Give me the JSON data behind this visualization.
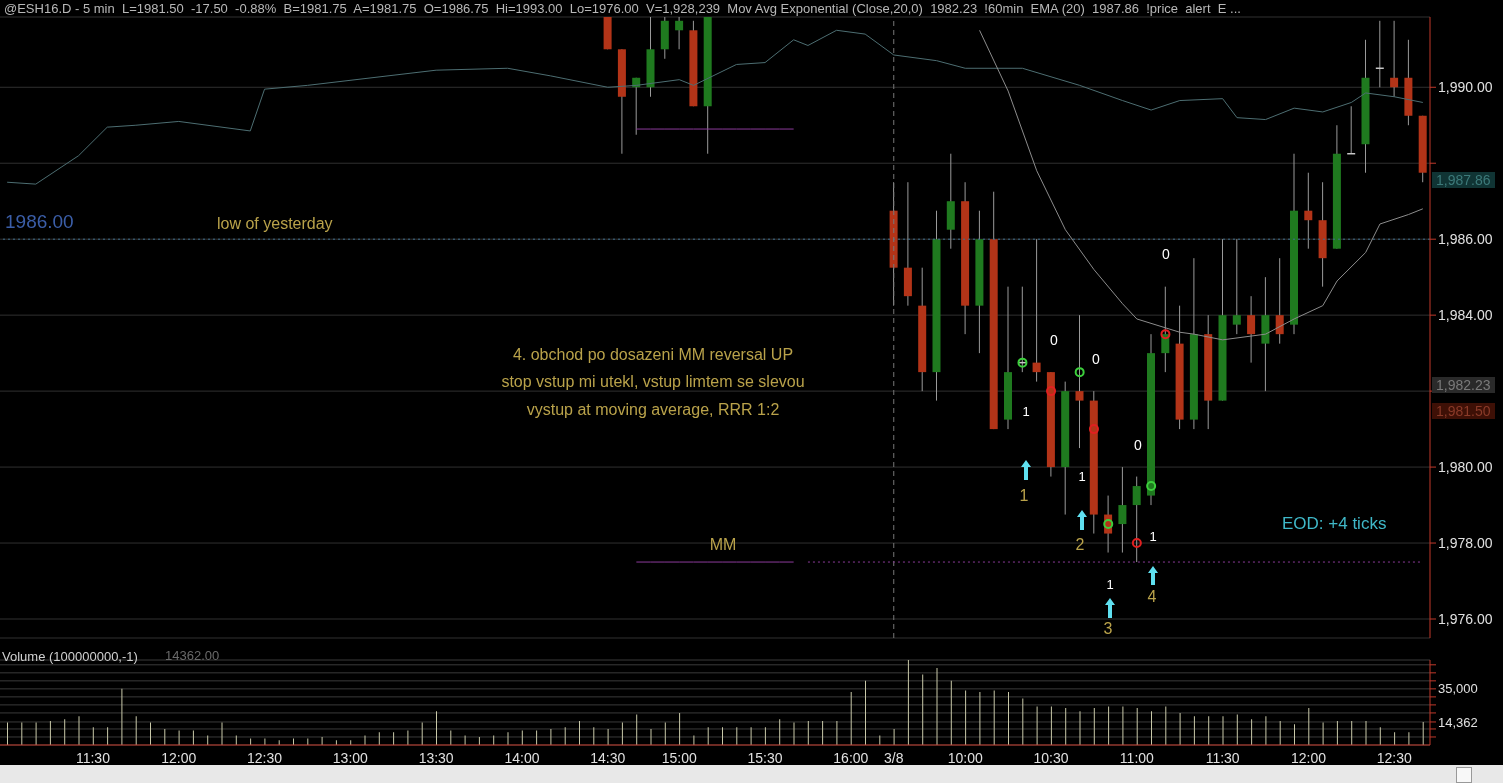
{
  "chart_data": [
    {
      "type": "candlestick",
      "title": "@ESH16.D - 5 min  L=1981.50  -17.50  -0.88%  B=1981.75  A=1981.75  O=1986.75  Hi=1993.00  Lo=1976.00  V=1,928,239  Mov Avg Exponential (Close,20,0)  1982.23  !60min  EMA (20)  1987.86  !price  alert  E ...",
      "categories": [
        null,
        null,
        null,
        null,
        null,
        null,
        "11:30",
        null,
        null,
        null,
        null,
        null,
        "12:00",
        null,
        null,
        null,
        null,
        null,
        "12:30",
        null,
        null,
        null,
        null,
        null,
        "13:00",
        null,
        null,
        null,
        null,
        null,
        "13:30",
        null,
        null,
        null,
        null,
        null,
        "14:00",
        null,
        null,
        null,
        null,
        null,
        "14:30",
        null,
        null,
        null,
        null,
        "15:00",
        null,
        null,
        null,
        null,
        null,
        "15:30",
        null,
        null,
        null,
        null,
        null,
        "16:00",
        null,
        null,
        "3/8",
        null,
        null,
        null,
        null,
        "10:00",
        null,
        null,
        null,
        null,
        null,
        "10:30",
        null,
        null,
        null,
        null,
        null,
        "11:00",
        null,
        null,
        null,
        null,
        null,
        "11:30",
        null,
        null,
        null,
        null,
        null,
        "12:00",
        null,
        null,
        null,
        null,
        null,
        "12:30",
        null,
        null
      ],
      "ohlc": [
        null,
        null,
        null,
        null,
        null,
        null,
        null,
        null,
        null,
        null,
        null,
        null,
        null,
        null,
        null,
        null,
        null,
        null,
        null,
        null,
        null,
        null,
        null,
        null,
        null,
        null,
        null,
        null,
        null,
        null,
        null,
        null,
        null,
        null,
        null,
        null,
        null,
        null,
        null,
        null,
        null,
        null,
        [
          1992,
          1992,
          1991,
          1991
        ],
        [
          1991,
          1991,
          1988.25,
          1989.75
        ],
        [
          1990,
          1990.25,
          1988.75,
          1990.25
        ],
        [
          1990,
          1992,
          1989.75,
          1991
        ],
        [
          1991,
          1992,
          1990.75,
          1991.75
        ],
        [
          1991.5,
          1992,
          1991,
          1991.75
        ],
        [
          1991.5,
          1991.75,
          1989.5,
          1989.5
        ],
        [
          1989.5,
          1992,
          1988.25,
          1992
        ],
        null,
        null,
        null,
        null,
        null,
        null,
        null,
        null,
        null,
        null,
        null,
        null,
        [
          1986.75,
          1987.5,
          1984.25,
          1985.25
        ],
        [
          1985.25,
          1987.5,
          1984.25,
          1984.5
        ],
        [
          1984.25,
          1985.25,
          1982,
          1982.5
        ],
        [
          1982.5,
          1986.75,
          1981.75,
          1986
        ],
        [
          1986.25,
          1988.25,
          1985.75,
          1987
        ],
        [
          1987,
          1987.5,
          1983.5,
          1984.25
        ],
        [
          1984.25,
          1986.75,
          1983,
          1986
        ],
        [
          1986,
          1987.25,
          1981,
          1981
        ],
        [
          1981.25,
          1984.75,
          1981,
          1982.5
        ],
        [
          1982.75,
          1984.75,
          1982.5,
          1982.75
        ],
        [
          1982.75,
          1986,
          1982.25,
          1982.5
        ],
        [
          1982.5,
          1982.5,
          1979.75,
          1980
        ],
        [
          1980,
          1982.25,
          1978.75,
          1982
        ],
        [
          1982,
          1984,
          1980.5,
          1981.75
        ],
        [
          1981.75,
          1982,
          1978.25,
          1978.75
        ],
        [
          1978.75,
          1979.25,
          1977.75,
          1978.25
        ],
        [
          1978.5,
          1980,
          1977.75,
          1979
        ],
        [
          1979,
          1979.75,
          1977.5,
          1979.5
        ],
        [
          1979.25,
          1983.5,
          1979,
          1983
        ],
        [
          1983,
          1984.75,
          1982.5,
          1983.5
        ],
        [
          1983.25,
          1984.25,
          1981,
          1981.25
        ],
        [
          1981.25,
          1985.5,
          1981,
          1983.5
        ],
        [
          1983.5,
          1984,
          1981,
          1981.75
        ],
        [
          1981.75,
          1986,
          1981.75,
          1984
        ],
        [
          1983.75,
          1986,
          1983.5,
          1984
        ],
        [
          1984,
          1984.5,
          1982.75,
          1983.5
        ],
        [
          1983.25,
          1985,
          1982,
          1984
        ],
        [
          1984,
          1985.5,
          1983.25,
          1983.5
        ],
        [
          1983.75,
          1988.25,
          1983.5,
          1986.75
        ],
        [
          1986.75,
          1987.75,
          1985.75,
          1986.5
        ],
        [
          1986.5,
          1987.5,
          1984.75,
          1985.5
        ],
        [
          1985.75,
          1989,
          1985.75,
          1988.25
        ],
        [
          1988.25,
          1989.5,
          1988.25,
          1988.25
        ],
        [
          1988.5,
          1991.25,
          1987.75,
          1990.25
        ],
        [
          1990.5,
          1991.75,
          1990,
          1990.5
        ],
        [
          1990.25,
          1991.75,
          1989.75,
          1990
        ],
        [
          1990.25,
          1991.25,
          1989,
          1989.25
        ],
        [
          1989.25,
          1989.25,
          1987.5,
          1987.75
        ]
      ],
      "colors": [
        null,
        null,
        null,
        null,
        null,
        null,
        null,
        null,
        null,
        null,
        null,
        null,
        null,
        null,
        null,
        null,
        null,
        null,
        null,
        null,
        null,
        null,
        null,
        null,
        null,
        null,
        null,
        null,
        null,
        null,
        null,
        null,
        null,
        null,
        null,
        null,
        null,
        null,
        null,
        null,
        null,
        null,
        "#b33418",
        "#b33418",
        "#1f7a1f",
        "#1f7a1f",
        "#1f7a1f",
        "#1f7a1f",
        "#b33418",
        "#1f7a1f",
        null,
        null,
        null,
        null,
        null,
        null,
        null,
        null,
        null,
        null,
        null,
        null,
        "#b33418",
        "#b33418",
        "#b33418",
        "#1f7a1f",
        "#1f7a1f",
        "#b33418",
        "#1f7a1f",
        "#b33418",
        "#1f7a1f",
        "#c8c8c8",
        "#b33418",
        "#b33418",
        "#1f7a1f",
        "#b33418",
        "#b33418",
        "#b33418",
        "#1f7a1f",
        "#1f7a1f",
        "#1f7a1f",
        "#1f7a1f",
        "#b33418",
        "#1f7a1f",
        "#b33418",
        "#1f7a1f",
        "#1f7a1f",
        "#b33418",
        "#1f7a1f",
        "#b33418",
        "#1f7a1f",
        "#b33418",
        "#b33418",
        "#1f7a1f",
        "#c8c8c8",
        "#1f7a1f",
        "#c8c8c8",
        "#b33418",
        "#b33418",
        "#b33418"
      ],
      "series": [
        {
          "type": "line",
          "color": "#4d6e72",
          "values": [
            1987.5,
            null,
            1987.45,
            null,
            null,
            1988.2,
            null,
            1988.95,
            null,
            1989,
            null,
            null,
            1989.1,
            null,
            null,
            null,
            null,
            1988.85,
            1989.95,
            null,
            null,
            1990.05,
            null,
            null,
            null,
            null,
            null,
            null,
            null,
            null,
            1990.45,
            null,
            null,
            null,
            null,
            1990.5,
            null,
            null,
            1990.3,
            null,
            null,
            null,
            1990,
            null,
            1990.05,
            null,
            null,
            1990.2,
            1990.05,
            null,
            null,
            1990.6,
            null,
            1990.65,
            null,
            1991.25,
            1991.1,
            null,
            1991.5,
            null,
            1991.4,
            null,
            1990.85,
            null,
            null,
            1990.7,
            null,
            1990.5,
            null,
            null,
            null,
            1990.5,
            null,
            null,
            null,
            1990.05,
            null,
            null,
            1989.65,
            null,
            1989.4,
            null,
            1989.65,
            null,
            null,
            1989.7,
            1989.2,
            null,
            1989.15,
            null,
            1989.45,
            null,
            1989.35,
            null,
            1989.6,
            1989.85,
            null,
            1989.75,
            null,
            1989.6
          ]
        },
        {
          "type": "line",
          "color": "#8c8c8c",
          "values": [
            null,
            null,
            null,
            null,
            null,
            null,
            null,
            null,
            null,
            null,
            null,
            null,
            null,
            null,
            null,
            null,
            null,
            null,
            null,
            null,
            null,
            null,
            null,
            null,
            null,
            null,
            null,
            null,
            null,
            null,
            null,
            null,
            null,
            null,
            null,
            null,
            null,
            null,
            null,
            null,
            null,
            null,
            null,
            null,
            null,
            null,
            null,
            null,
            null,
            null,
            null,
            null,
            null,
            null,
            null,
            null,
            null,
            null,
            null,
            null,
            null,
            null,
            null,
            null,
            null,
            null,
            null,
            null,
            1991.5,
            null,
            1989.9,
            null,
            1987.8,
            null,
            1986.25,
            null,
            1985.2,
            null,
            1984.3,
            1983.9,
            null,
            null,
            1983.55,
            1983.5,
            null,
            1983.35,
            null,
            null,
            1983.5,
            null,
            1983.9,
            null,
            1984.25,
            1984.9,
            null,
            1985.65,
            1986.4,
            null,
            1986.65,
            1986.8
          ]
        },
        {
          "type": "line",
          "color": "#8b3a9b",
          "values": [
            null,
            null,
            null,
            null,
            null,
            null,
            null,
            null,
            null,
            null,
            null,
            null,
            null,
            null,
            null,
            null,
            null,
            null,
            null,
            null,
            null,
            null,
            null,
            null,
            null,
            null,
            null,
            null,
            null,
            null,
            null,
            null,
            null,
            null,
            null,
            null,
            null,
            null,
            null,
            null,
            null,
            null,
            null,
            null,
            1988.9,
            1988.9,
            1988.9,
            1988.9,
            1988.9,
            1988.9,
            1988.9,
            1988.9,
            1988.9,
            1988.9,
            1988.9,
            1988.9,
            null,
            null,
            null,
            null,
            null,
            null,
            null,
            null,
            null,
            null,
            null,
            null,
            null,
            null,
            null,
            null,
            null,
            null,
            null,
            null,
            null,
            null,
            null,
            null,
            null,
            null,
            null,
            null,
            null,
            null,
            null,
            null,
            null,
            null,
            null,
            null,
            null,
            null,
            null,
            null,
            null,
            null,
            null,
            null
          ]
        },
        {
          "type": "line",
          "color": "#8b3a9b",
          "values": [
            null,
            null,
            null,
            null,
            null,
            null,
            null,
            null,
            null,
            null,
            null,
            null,
            null,
            null,
            null,
            null,
            null,
            null,
            null,
            null,
            null,
            null,
            null,
            null,
            null,
            null,
            null,
            null,
            null,
            null,
            null,
            null,
            null,
            null,
            null,
            null,
            null,
            null,
            null,
            null,
            null,
            null,
            null,
            null,
            1977.5,
            1977.5,
            1977.5,
            1977.5,
            1977.5,
            1977.5,
            1977.5,
            1977.5,
            1977.5,
            1977.5,
            1977.5,
            1977.5,
            null,
            null,
            null,
            null,
            null,
            null,
            null,
            null,
            null,
            null,
            null,
            null,
            null,
            null,
            null,
            null,
            null,
            null,
            null,
            null,
            null,
            null,
            null,
            null,
            null,
            null,
            null,
            null,
            null,
            null,
            null,
            null,
            null,
            null,
            null,
            null,
            null,
            null,
            null,
            null,
            null,
            null,
            null,
            null
          ]
        },
        {
          "type": "line",
          "color": "#8b3a9b",
          "line_style": "dotted",
          "values": [
            null,
            null,
            null,
            null,
            null,
            null,
            null,
            null,
            null,
            null,
            null,
            null,
            null,
            null,
            null,
            null,
            null,
            null,
            null,
            null,
            null,
            null,
            null,
            null,
            null,
            null,
            null,
            null,
            null,
            null,
            null,
            null,
            null,
            null,
            null,
            null,
            null,
            null,
            null,
            null,
            null,
            null,
            null,
            null,
            null,
            null,
            null,
            null,
            null,
            null,
            null,
            null,
            null,
            null,
            null,
            null,
            1977.5,
            1977.5,
            1977.5,
            1977.5,
            1977.5,
            1977.5,
            1977.5,
            1977.5,
            1977.5,
            1977.5,
            1977.5,
            1977.5,
            1977.5,
            1977.5,
            1977.5,
            1977.5,
            1977.5,
            1977.5,
            1977.5,
            1977.5,
            1977.5,
            1977.5,
            1977.5,
            1977.5,
            1977.5,
            1977.5,
            1977.5,
            1977.5,
            1977.5,
            1977.5,
            1977.5,
            1977.5,
            1977.5,
            1977.5,
            1977.5,
            1977.5,
            1977.5,
            1977.5,
            1977.5,
            1977.5,
            1977.5,
            1977.5,
            1977.5,
            1977.5
          ]
        },
        {
          "type": "scatter",
          "color": "#3ccf3c",
          "marker": "circle",
          "values": [
            null,
            null,
            null,
            null,
            null,
            null,
            null,
            null,
            null,
            null,
            null,
            null,
            null,
            null,
            null,
            null,
            null,
            null,
            null,
            null,
            null,
            null,
            null,
            null,
            null,
            null,
            null,
            null,
            null,
            null,
            null,
            null,
            null,
            null,
            null,
            null,
            null,
            null,
            null,
            null,
            null,
            null,
            null,
            null,
            null,
            null,
            null,
            null,
            null,
            null,
            null,
            null,
            null,
            null,
            null,
            null,
            null,
            null,
            null,
            null,
            null,
            null,
            null,
            null,
            null,
            null,
            null,
            null,
            null,
            null,
            null,
            1982.75,
            null,
            null,
            null,
            1982.5,
            null,
            1978.5,
            null,
            null,
            1979.5,
            null,
            null,
            null,
            null,
            null,
            null,
            null,
            null,
            null,
            null,
            null,
            null,
            null,
            null,
            null,
            null,
            null,
            null,
            null
          ]
        },
        {
          "type": "scatter",
          "color": "#e02020",
          "marker": "circle",
          "values": [
            null,
            null,
            null,
            null,
            null,
            null,
            null,
            null,
            null,
            null,
            null,
            null,
            null,
            null,
            null,
            null,
            null,
            null,
            null,
            null,
            null,
            null,
            null,
            null,
            null,
            null,
            null,
            null,
            null,
            null,
            null,
            null,
            null,
            null,
            null,
            null,
            null,
            null,
            null,
            null,
            null,
            null,
            null,
            null,
            null,
            null,
            null,
            null,
            null,
            null,
            null,
            null,
            null,
            null,
            null,
            null,
            null,
            null,
            null,
            null,
            null,
            null,
            null,
            null,
            null,
            null,
            null,
            null,
            null,
            null,
            null,
            null,
            null,
            1982,
            null,
            null,
            1981,
            null,
            null,
            1978,
            null,
            1983.5,
            null,
            null,
            null,
            null,
            null,
            null,
            null,
            null,
            null,
            null,
            null,
            null,
            null,
            null,
            null,
            null,
            null,
            null
          ]
        }
      ],
      "ylim": [
        1975.5,
        1991.85
      ],
      "yticks": [
        {
          "value": 1976,
          "label": "1,976.00"
        },
        {
          "value": 1978,
          "label": "1,978.00"
        },
        {
          "value": 1980,
          "label": "1,980.00"
        },
        {
          "value": 1982,
          "label": null
        },
        {
          "value": 1984,
          "label": "1,984.00"
        },
        {
          "value": 1986,
          "label": "1,986.00"
        },
        {
          "value": 1988,
          "label": null
        },
        {
          "value": 1990,
          "label": "1,990.00"
        }
      ],
      "grid": "y",
      "tick_labels": "y",
      "ref_lines": [
        {
          "axis": "y",
          "value": 1986,
          "label": "low of yesterday",
          "color": "#3f6f8f",
          "line_style": "dotted"
        },
        {
          "axis": "x",
          "value": "3/8",
          "label": null,
          "color": "#777777",
          "line_style": "dashed"
        }
      ],
      "annotations": [
        "1986.00",
        "4. obchod po dosazeni MM reversal UP",
        "stop vstup mi utekl, vstup limtem se slevou",
        "vystup at moving average, RRR 1:2",
        "MM",
        "EOD: +4 ticks",
        "1",
        "2",
        "3",
        "4",
        "0",
        "0",
        "0",
        "0",
        "1",
        "1",
        "1",
        "1",
        "1,987.86",
        "1,982.23",
        "1,981.50"
      ]
    },
    {
      "type": "bar",
      "title": "Volume (100000000,-1)",
      "color": "#c8c8a8",
      "categories": [
        null,
        null,
        null,
        null,
        null,
        null,
        "11:30",
        null,
        null,
        null,
        null,
        null,
        "12:00",
        null,
        null,
        null,
        null,
        null,
        "12:30",
        null,
        null,
        null,
        null,
        null,
        "13:00",
        null,
        null,
        null,
        null,
        null,
        "13:30",
        null,
        null,
        null,
        null,
        null,
        "14:00",
        null,
        null,
        null,
        null,
        null,
        "14:30",
        null,
        null,
        null,
        null,
        "15:00",
        null,
        null,
        null,
        null,
        null,
        "15:30",
        null,
        null,
        null,
        null,
        null,
        "16:00",
        null,
        null,
        "3/8",
        null,
        null,
        null,
        null,
        "10:00",
        null,
        null,
        null,
        null,
        null,
        "10:30",
        null,
        null,
        null,
        null,
        null,
        "11:00",
        null,
        null,
        null,
        null,
        null,
        "11:30",
        null,
        null,
        null,
        null,
        null,
        "12:00",
        null,
        null,
        null,
        null,
        null,
        "12:30",
        null,
        null
      ],
      "values": [
        14000,
        14000,
        14000,
        15000,
        16000,
        18000,
        11000,
        11000,
        35000,
        18000,
        14000,
        10000,
        9000,
        9000,
        6000,
        14000,
        6000,
        4000,
        4000,
        3000,
        4000,
        4000,
        5000,
        3000,
        3000,
        6000,
        8000,
        8000,
        9000,
        14000,
        21000,
        9000,
        6000,
        5000,
        6000,
        8000,
        9000,
        9000,
        10000,
        11000,
        15000,
        11000,
        10000,
        14000,
        19000,
        10000,
        14000,
        20000,
        6000,
        11000,
        11000,
        11000,
        11000,
        11000,
        16000,
        14000,
        15000,
        15000,
        15000,
        33000,
        40000,
        6000,
        10000,
        53000,
        44000,
        48000,
        40000,
        34000,
        33000,
        34000,
        33000,
        29000,
        24000,
        24000,
        23000,
        21000,
        23000,
        24000,
        24000,
        23000,
        21000,
        24000,
        20000,
        18000,
        18000,
        18000,
        19000,
        16000,
        18000,
        15000,
        13000,
        23000,
        14000,
        15000,
        15000,
        15000,
        11000,
        8000,
        8000,
        14362
      ],
      "ylim": [
        0,
        53000
      ],
      "yticks": [
        {
          "value": 5000,
          "label": null
        },
        {
          "value": 10000,
          "label": null
        },
        {
          "value": 14362,
          "label": "14,362"
        },
        {
          "value": 20000,
          "label": null
        },
        {
          "value": 25000,
          "label": null
        },
        {
          "value": 30000,
          "label": null
        },
        {
          "value": 35000,
          "label": "35,000"
        },
        {
          "value": 40000,
          "label": null
        },
        {
          "value": 45000,
          "label": null
        },
        {
          "value": 50000,
          "label": null
        }
      ],
      "grid": "y",
      "annotations": [
        "14362.00"
      ]
    }
  ]
}
